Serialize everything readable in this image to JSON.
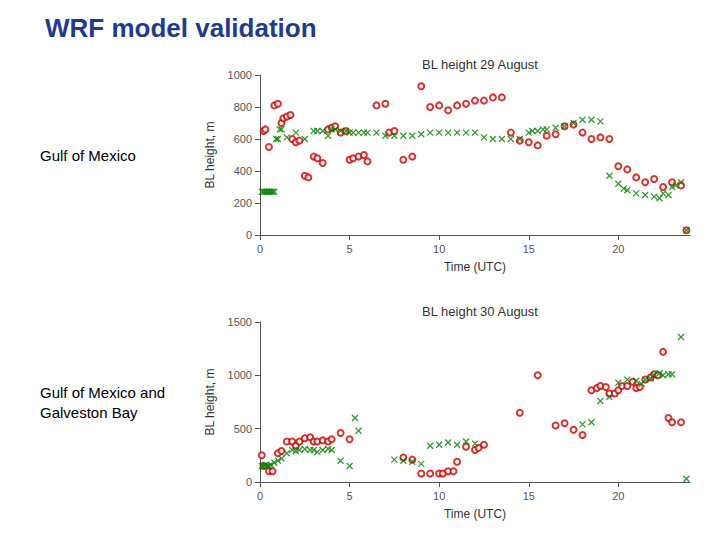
{
  "title": "WRF model validation",
  "chart_data": [
    {
      "type": "scatter",
      "title": "BL height 29 August",
      "annotations": [
        "Gulf of Mexico"
      ],
      "xlabel": "Time (UTC)",
      "ylabel": "BL height, m",
      "xlim": [
        0,
        24
      ],
      "ylim": [
        0,
        1000
      ],
      "xticks": [
        0,
        5,
        10,
        15,
        20
      ],
      "yticks": [
        0,
        200,
        400,
        600,
        800,
        1000
      ],
      "grid": false,
      "series": [
        {
          "color": "#CC0000",
          "marker": "o",
          "x": [
            0.2,
            0.3,
            0.5,
            0.8,
            1.0,
            1.2,
            1.3,
            1.5,
            1.7,
            1.8,
            2.0,
            2.2,
            2.5,
            2.7,
            3.0,
            3.2,
            3.5,
            3.8,
            4.0,
            4.2,
            4.5,
            4.8,
            5.0,
            5.2,
            5.5,
            5.8,
            6.0,
            6.5,
            7.0,
            7.2,
            7.5,
            8.0,
            8.5,
            9.0,
            9.5,
            10.0,
            10.5,
            11.0,
            11.5,
            12.0,
            12.5,
            13.0,
            13.5,
            14.0,
            14.5,
            15.0,
            15.5,
            16.0,
            16.5,
            17.0,
            17.5,
            18.0,
            18.5,
            19.0,
            19.5,
            20.0,
            20.5,
            21.0,
            21.5,
            22.0,
            22.5,
            23.0,
            23.5,
            23.8
          ],
          "values": [
            650,
            660,
            550,
            810,
            820,
            700,
            730,
            740,
            750,
            600,
            580,
            590,
            370,
            360,
            490,
            480,
            450,
            660,
            670,
            680,
            640,
            650,
            470,
            480,
            490,
            500,
            460,
            810,
            820,
            640,
            650,
            470,
            490,
            930,
            800,
            810,
            780,
            810,
            820,
            840,
            840,
            860,
            860,
            640,
            590,
            580,
            560,
            620,
            630,
            680,
            690,
            640,
            600,
            610,
            600,
            430,
            410,
            360,
            330,
            350,
            300,
            330,
            310,
            30
          ]
        },
        {
          "color": "#008000",
          "marker": "x",
          "x": [
            0.1,
            0.2,
            0.3,
            0.4,
            0.5,
            0.6,
            0.7,
            0.8,
            0.9,
            1.0,
            1.1,
            1.2,
            1.5,
            2.0,
            2.5,
            3.0,
            3.2,
            3.5,
            3.8,
            4.0,
            4.2,
            4.5,
            4.8,
            5.0,
            5.2,
            5.5,
            5.8,
            6.0,
            6.5,
            7.0,
            7.5,
            8.0,
            8.5,
            9.0,
            9.5,
            10.0,
            10.5,
            11.0,
            11.5,
            12.0,
            12.5,
            13.0,
            13.5,
            14.0,
            14.5,
            15.0,
            15.2,
            15.5,
            15.8,
            16.0,
            16.5,
            17.0,
            17.5,
            18.0,
            18.5,
            19.0,
            19.5,
            20.0,
            20.3,
            20.5,
            21.0,
            21.5,
            22.0,
            22.3,
            22.5,
            22.8,
            23.0,
            23.2,
            23.5,
            23.8
          ],
          "values": [
            270,
            270,
            270,
            270,
            270,
            270,
            270,
            270,
            600,
            600,
            660,
            660,
            610,
            640,
            600,
            650,
            650,
            650,
            620,
            660,
            660,
            650,
            650,
            640,
            640,
            640,
            640,
            640,
            640,
            620,
            620,
            620,
            620,
            630,
            640,
            640,
            640,
            640,
            640,
            640,
            610,
            600,
            600,
            600,
            600,
            640,
            650,
            650,
            660,
            660,
            670,
            680,
            700,
            720,
            720,
            710,
            370,
            320,
            290,
            280,
            260,
            250,
            240,
            230,
            260,
            250,
            300,
            310,
            330,
            30
          ]
        }
      ]
    },
    {
      "type": "scatter",
      "title": "BL height 30 August",
      "annotations": [
        "Gulf of Mexico and\nGalveston Bay"
      ],
      "xlabel": "Time (UTC)",
      "ylabel": "BL height, m",
      "xlim": [
        0,
        24
      ],
      "ylim": [
        0,
        1500
      ],
      "xticks": [
        0,
        5,
        10,
        15,
        20
      ],
      "yticks": [
        0,
        500,
        1000,
        1500
      ],
      "grid": false,
      "series": [
        {
          "color": "#CC0000",
          "marker": "o",
          "x": [
            0.1,
            0.2,
            0.5,
            0.7,
            1.0,
            1.2,
            1.5,
            1.8,
            2.0,
            2.2,
            2.5,
            2.8,
            3.0,
            3.2,
            3.5,
            3.8,
            4.0,
            4.5,
            5.0,
            8.0,
            8.5,
            9.0,
            9.5,
            10.0,
            10.2,
            10.5,
            10.8,
            11.0,
            11.5,
            12.0,
            12.2,
            12.5,
            14.5,
            15.5,
            16.5,
            17.0,
            17.5,
            18.0,
            18.5,
            18.8,
            19.0,
            19.3,
            19.5,
            19.8,
            20.0,
            20.2,
            20.5,
            20.8,
            21.0,
            21.2,
            21.5,
            21.8,
            22.0,
            22.2,
            22.5,
            22.8,
            23.0,
            23.5
          ],
          "values": [
            250,
            150,
            100,
            100,
            270,
            290,
            380,
            380,
            340,
            380,
            410,
            420,
            380,
            380,
            390,
            380,
            400,
            460,
            400,
            230,
            210,
            80,
            80,
            80,
            80,
            100,
            100,
            190,
            330,
            300,
            320,
            350,
            650,
            1000,
            530,
            550,
            490,
            440,
            860,
            880,
            900,
            890,
            830,
            830,
            860,
            900,
            900,
            940,
            880,
            890,
            960,
            980,
            1010,
            1000,
            1220,
            600,
            560,
            560
          ]
        },
        {
          "color": "#008000",
          "marker": "x",
          "x": [
            0.1,
            0.2,
            0.3,
            0.4,
            0.5,
            0.6,
            0.8,
            1.0,
            1.2,
            1.5,
            1.8,
            2.0,
            2.2,
            2.5,
            2.8,
            3.0,
            3.2,
            3.5,
            3.8,
            4.0,
            4.5,
            5.0,
            5.3,
            5.5,
            7.5,
            8.0,
            8.5,
            9.0,
            9.5,
            10.0,
            10.5,
            11.0,
            11.5,
            12.0,
            18.0,
            18.5,
            19.0,
            19.5,
            20.0,
            20.5,
            21.0,
            21.3,
            21.5,
            21.8,
            22.0,
            22.3,
            22.5,
            22.8,
            23.0,
            23.5,
            23.8
          ],
          "values": [
            150,
            150,
            160,
            150,
            150,
            160,
            180,
            200,
            220,
            270,
            300,
            290,
            300,
            310,
            300,
            300,
            280,
            300,
            310,
            300,
            200,
            150,
            600,
            480,
            210,
            200,
            190,
            170,
            340,
            350,
            370,
            350,
            380,
            360,
            540,
            560,
            760,
            800,
            930,
            960,
            950,
            920,
            960,
            970,
            1000,
            1020,
            1000,
            1010,
            1010,
            1360,
            30
          ]
        }
      ]
    }
  ]
}
